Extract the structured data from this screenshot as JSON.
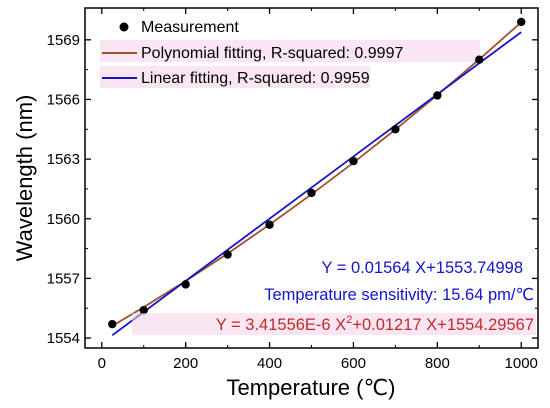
{
  "chart_data": {
    "type": "scatter",
    "xlabel": "Temperature (℃)",
    "ylabel": "Wavelength (nm)",
    "xlim": [
      -40,
      1040
    ],
    "ylim": [
      1553.5,
      1570.6
    ],
    "xticks": [
      0,
      200,
      400,
      600,
      800,
      1000
    ],
    "yticks": [
      1554,
      1557,
      1560,
      1563,
      1566,
      1569
    ],
    "grid": false,
    "legend": "top-left",
    "series": [
      {
        "name": "Measurement",
        "kind": "points",
        "color": "#000000",
        "x": [
          25,
          100,
          200,
          300,
          400,
          500,
          600,
          700,
          800,
          900,
          1000
        ],
        "y": [
          1554.7,
          1555.4,
          1556.7,
          1558.2,
          1559.7,
          1561.3,
          1562.9,
          1564.5,
          1566.2,
          1568.0,
          1569.9
        ]
      },
      {
        "name": "Polynomial fitting, R-squared: 0.9997",
        "kind": "line",
        "color": "#a0522d",
        "x": [
          25,
          100,
          200,
          300,
          400,
          500,
          600,
          700,
          800,
          900,
          1000
        ],
        "y": [
          1554.61,
          1555.55,
          1556.87,
          1558.25,
          1559.71,
          1561.23,
          1562.82,
          1564.49,
          1566.22,
          1568.02,
          1569.88
        ]
      },
      {
        "name": "Linear fitting, R-squared: 0.9959",
        "kind": "line",
        "color": "#1414cc",
        "x": [
          25,
          1000
        ],
        "y": [
          1554.14,
          1569.39
        ]
      }
    ],
    "annotations": [
      {
        "text": "Y = 0.01564 X+1553.74998",
        "color": "#1414cc"
      },
      {
        "text": "Temperature sensitivity: 15.64 pm/℃",
        "color": "#1414cc"
      },
      {
        "text_before": "Y = 3.41556E-6 X",
        "sup": "2",
        "text_after": "+0.01217 X+1554.29567",
        "color": "#c62828"
      }
    ],
    "colors": {
      "highlight": "#f6d2ea"
    }
  }
}
